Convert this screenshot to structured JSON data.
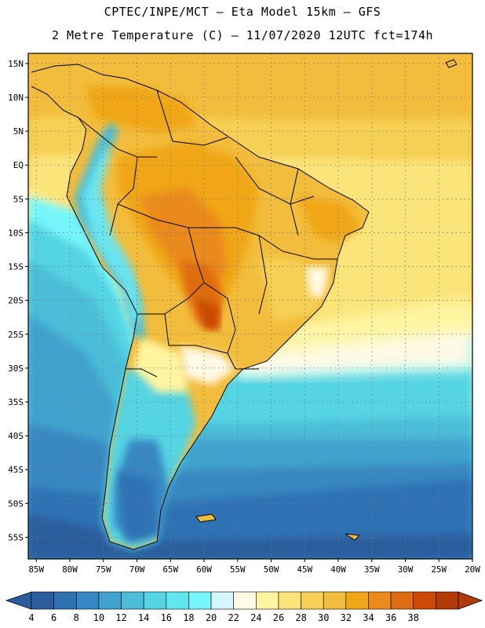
{
  "header": {
    "title_line1": "CPTEC/INPE/MCT –  Eta Model 15km – GFS",
    "title_line2": "2 Metre Temperature (C) – 11/07/2020 12UTC fct=174h"
  },
  "map": {
    "lat_labels": [
      "15N",
      "10N",
      "5N",
      "EQ",
      "5S",
      "10S",
      "15S",
      "20S",
      "25S",
      "30S",
      "35S",
      "40S",
      "45S",
      "50S",
      "55S"
    ],
    "lat_values": [
      15,
      10,
      5,
      0,
      -5,
      -10,
      -15,
      -20,
      -25,
      -30,
      -35,
      -40,
      -45,
      -50,
      -55
    ],
    "lon_labels": [
      "85W",
      "80W",
      "75W",
      "70W",
      "65W",
      "60W",
      "55W",
      "50W",
      "45W",
      "40W",
      "35W",
      "30W",
      "25W",
      "20W"
    ],
    "lon_values": [
      -85,
      -80,
      -75,
      -70,
      -65,
      -60,
      -55,
      -50,
      -45,
      -40,
      -35,
      -30,
      -25,
      -20
    ],
    "lat_range": [
      -58.2,
      16.5
    ],
    "lon_range": [
      -86.2,
      -20.0
    ]
  },
  "colorbar": {
    "labels": [
      "4",
      "6",
      "8",
      "10",
      "12",
      "14",
      "16",
      "18",
      "20",
      "22",
      "24",
      "26",
      "28",
      "30",
      "32",
      "34",
      "36",
      "38"
    ],
    "colors": [
      "#2a5d9d",
      "#2f72b4",
      "#3787c2",
      "#41a3cd",
      "#4cbdd8",
      "#55d4e3",
      "#60e6ef",
      "#76f6fb",
      "#d4f5fb",
      "#fffae6",
      "#fff5a0",
      "#fbe47a",
      "#f6d054",
      "#f2bd3c",
      "#f0a618",
      "#ea8a1c",
      "#df6c0f",
      "#cc4a06",
      "#b23a08"
    ],
    "under_color": "#2a5d9d",
    "over_color": "#b23a08"
  }
}
